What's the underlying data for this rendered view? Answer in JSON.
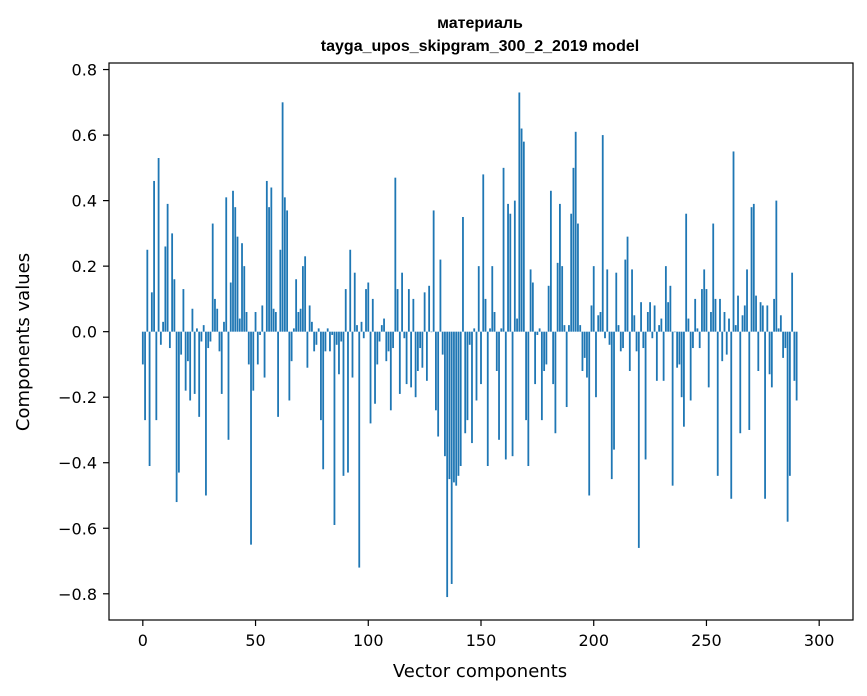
{
  "chart_data": {
    "type": "bar",
    "title": [
      "материаль",
      "tayga_upos_skipgram_300_2_2019 model"
    ],
    "xlabel": "Vector components",
    "ylabel": "Components values",
    "xlim": [
      -15,
      315
    ],
    "ylim": [
      -0.88,
      0.82
    ],
    "xticks": [
      0,
      50,
      100,
      150,
      200,
      250,
      300
    ],
    "xtick_labels": [
      "0",
      "50",
      "100",
      "150",
      "200",
      "250",
      "300"
    ],
    "yticks": [
      -0.8,
      -0.6,
      -0.4,
      -0.2,
      0.0,
      0.2,
      0.4,
      0.6,
      0.8
    ],
    "ytick_labels": [
      "−0.8",
      "−0.6",
      "−0.4",
      "−0.2",
      "0.0",
      "0.2",
      "0.4",
      "0.6",
      "0.8"
    ],
    "grid": false,
    "bar_color": "#1f77b4",
    "x_start": 0,
    "values": [
      -0.1,
      -0.27,
      0.25,
      -0.41,
      0.12,
      0.46,
      -0.27,
      0.53,
      -0.04,
      0.03,
      0.26,
      0.39,
      -0.05,
      0.3,
      0.16,
      -0.52,
      -0.43,
      -0.07,
      0.13,
      -0.18,
      -0.09,
      -0.21,
      0.07,
      -0.19,
      0.01,
      -0.26,
      -0.03,
      0.02,
      -0.5,
      -0.05,
      -0.03,
      0.33,
      0.1,
      0.07,
      -0.06,
      -0.19,
      0.03,
      0.41,
      -0.33,
      0.15,
      0.43,
      0.38,
      0.29,
      0.04,
      0.27,
      0.2,
      0.06,
      -0.1,
      -0.65,
      -0.18,
      0.06,
      -0.1,
      -0.01,
      0.08,
      -0.14,
      0.46,
      0.38,
      0.44,
      0.07,
      0.06,
      -0.26,
      0.25,
      0.7,
      0.41,
      0.37,
      -0.21,
      -0.09,
      0.01,
      0.16,
      0.06,
      0.07,
      0.2,
      0.23,
      -0.11,
      0.08,
      0.03,
      -0.06,
      -0.04,
      0.01,
      -0.27,
      -0.42,
      -0.06,
      0.01,
      -0.06,
      -0.01,
      -0.59,
      -0.04,
      -0.13,
      -0.03,
      -0.44,
      0.13,
      -0.43,
      0.25,
      -0.14,
      0.18,
      0.02,
      -0.72,
      0.03,
      -0.02,
      0.13,
      0.15,
      -0.28,
      0.1,
      -0.22,
      -0.1,
      -0.03,
      0.02,
      0.04,
      -0.09,
      -0.06,
      -0.24,
      -0.05,
      0.47,
      0.13,
      -0.19,
      0.18,
      -0.02,
      -0.16,
      0.13,
      -0.17,
      0.1,
      -0.2,
      -0.12,
      -0.05,
      -0.11,
      0.12,
      -0.15,
      0.14,
      0.0,
      0.37,
      -0.24,
      -0.32,
      0.22,
      -0.07,
      -0.38,
      -0.81,
      -0.45,
      -0.77,
      -0.46,
      -0.47,
      -0.44,
      -0.41,
      0.35,
      -0.31,
      -0.27,
      -0.04,
      -0.34,
      0.01,
      -0.21,
      0.2,
      -0.16,
      0.48,
      0.1,
      -0.41,
      0.01,
      0.2,
      0.06,
      -0.12,
      -0.33,
      0.01,
      0.5,
      -0.39,
      0.39,
      0.36,
      -0.38,
      0.4,
      0.04,
      0.73,
      0.62,
      0.58,
      -0.27,
      -0.41,
      0.19,
      0.15,
      -0.16,
      -0.01,
      0.01,
      -0.27,
      -0.12,
      -0.1,
      0.14,
      0.43,
      -0.16,
      -0.31,
      0.21,
      0.39,
      0.2,
      0.02,
      -0.23,
      0.02,
      0.36,
      0.5,
      0.61,
      0.33,
      0.02,
      -0.12,
      -0.08,
      -0.14,
      -0.5,
      0.08,
      0.2,
      -0.2,
      0.05,
      0.06,
      0.6,
      -0.02,
      0.19,
      -0.04,
      -0.45,
      -0.36,
      0.18,
      0.02,
      -0.06,
      -0.05,
      0.22,
      0.29,
      -0.12,
      0.19,
      0.05,
      -0.06,
      -0.66,
      0.09,
      -0.05,
      -0.39,
      0.06,
      0.09,
      -0.02,
      0.08,
      -0.15,
      0.02,
      0.04,
      -0.15,
      0.2,
      0.09,
      0.14,
      -0.47,
      0.0,
      -0.11,
      -0.1,
      -0.2,
      -0.29,
      0.36,
      0.04,
      -0.21,
      -0.05,
      0.1,
      0.01,
      -0.05,
      0.13,
      0.19,
      0.13,
      -0.17,
      0.06,
      0.33,
      0.1,
      -0.44,
      0.1,
      -0.09,
      0.06,
      -0.07,
      0.04,
      -0.51,
      0.55,
      0.02,
      0.11,
      -0.31,
      0.05,
      0.08,
      0.19,
      -0.3,
      0.38,
      0.39,
      0.11,
      -0.12,
      0.09,
      0.08,
      -0.51,
      0.08,
      -0.13,
      -0.17,
      0.1,
      0.4,
      0.01,
      0.05,
      -0.08,
      -0.05,
      -0.58,
      -0.44,
      0.18,
      -0.15,
      -0.21
    ]
  }
}
